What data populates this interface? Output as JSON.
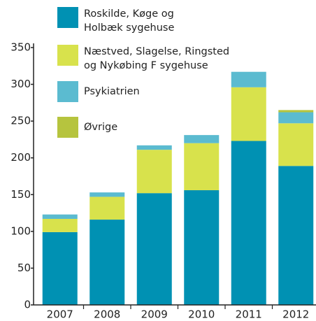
{
  "chart_data": {
    "type": "stacked_bar",
    "categories": [
      "2007",
      "2008",
      "2009",
      "2010",
      "2011",
      "2012"
    ],
    "series": [
      {
        "name": "Roskilde, Køge og\nHolbæk sygehuse",
        "color": "#0091b3",
        "values": [
          99,
          116,
          152,
          156,
          223,
          189
        ]
      },
      {
        "name": "Næstved, Slagelse, Ringsted\nog Nykøbing F sygehuse",
        "color": "#d8e24c",
        "values": [
          18,
          31,
          59,
          64,
          73,
          58
        ]
      },
      {
        "name": "Psykiatrien",
        "color": "#5bbbd0",
        "values": [
          6,
          6,
          6,
          11,
          21,
          15
        ]
      },
      {
        "name": "Øvrige",
        "color": "#b6c43e",
        "values": [
          0,
          0,
          0,
          0,
          0,
          3
        ]
      }
    ],
    "ylim": [
      0,
      350
    ],
    "yticks": [
      0,
      50,
      100,
      150,
      200,
      250,
      300,
      350
    ],
    "legend": "top-left"
  }
}
